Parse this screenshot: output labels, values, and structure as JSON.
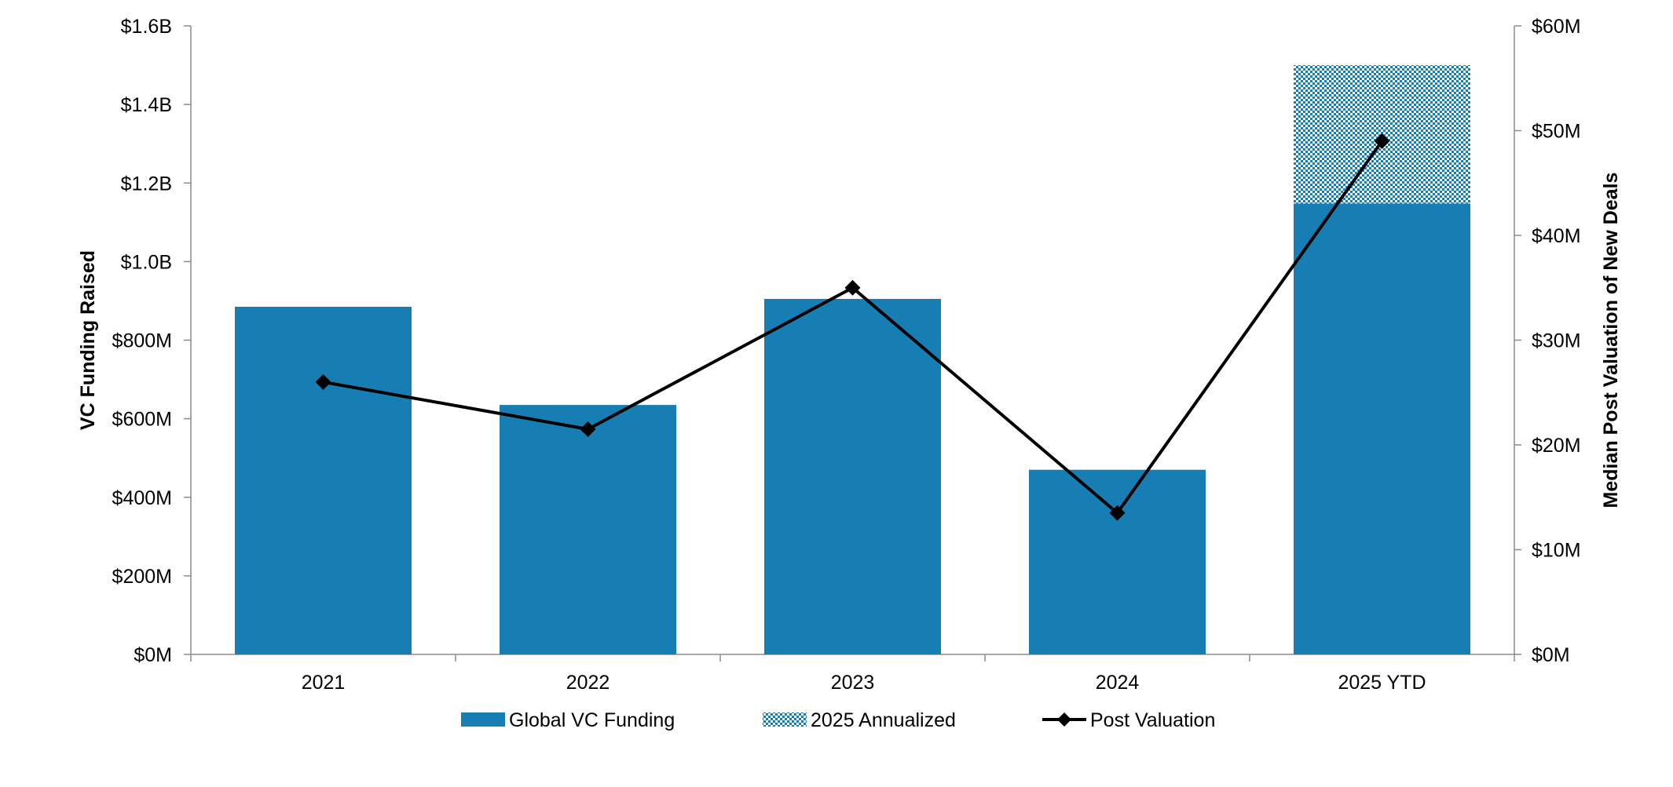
{
  "chart_data": {
    "type": "bar",
    "categories": [
      "2021",
      "2022",
      "2023",
      "2024",
      "2025 YTD"
    ],
    "series": [
      {
        "name": "Global VC Funding",
        "type": "bar",
        "axis": "left",
        "color": "#167EB2",
        "values": [
          885,
          635,
          905,
          470,
          1148
        ]
      },
      {
        "name": "2025 Annualized",
        "type": "bar-stacked-hatched",
        "axis": "left",
        "color": "#167EB2",
        "values": [
          null,
          null,
          null,
          null,
          352
        ]
      },
      {
        "name": "Post Valuation",
        "type": "line",
        "axis": "right",
        "color": "#000000",
        "marker": "diamond",
        "values": [
          26.0,
          21.5,
          35.0,
          13.5,
          49.0
        ]
      }
    ],
    "y_left": {
      "label": "VC Funding Raised",
      "ylim": [
        0,
        1600
      ],
      "ticks": [
        "$0M",
        "$200M",
        "$400M",
        "$600M",
        "$800M",
        "$1.0B",
        "$1.2B",
        "$1.4B",
        "$1.6B"
      ]
    },
    "y_right": {
      "label": "Median Post Valuation of New Deals",
      "ylim": [
        0,
        60
      ],
      "ticks": [
        "$0M",
        "$10M",
        "$20M",
        "$30M",
        "$40M",
        "$50M",
        "$60M"
      ]
    },
    "legend": {
      "placement": "bottom",
      "items": [
        "Global VC Funding",
        "2025 Annualized",
        "Post Valuation"
      ]
    },
    "grid": false
  }
}
